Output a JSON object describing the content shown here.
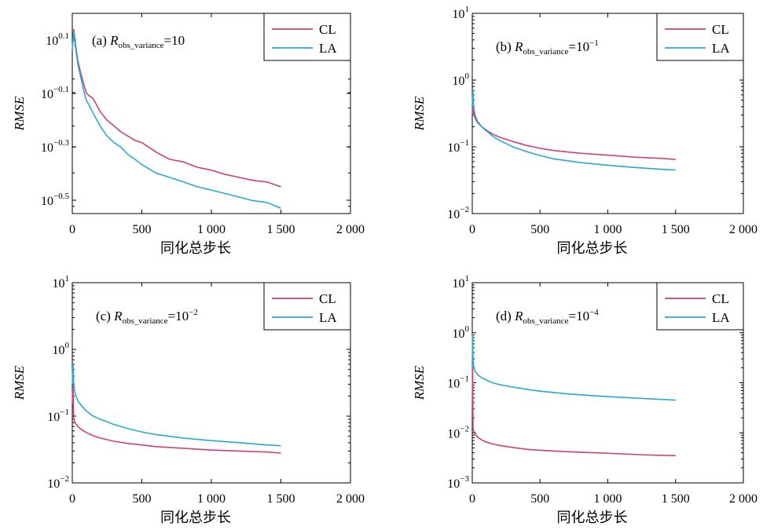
{
  "chart_data": [
    {
      "type": "line",
      "panel_label": "(a)",
      "title_var": "R",
      "title_sub": "obs_variance",
      "title_eq": "=10",
      "title_sup": "",
      "xlabel": "同化总步长",
      "ylabel": "RMSE",
      "xlim": [
        0,
        2000
      ],
      "x_ticks": [
        0,
        500,
        1000,
        1500,
        2000
      ],
      "x_tick_labels": [
        "0",
        "500",
        "1 000",
        "1 500",
        "2 000"
      ],
      "y_scale": "log",
      "ylim_log10": [
        -0.55,
        0.2
      ],
      "y_ticks_log10": [
        0.1,
        -0.1,
        -0.3,
        -0.5
      ],
      "y_tick_labels": [
        {
          "base": "10",
          "exp": "0.1"
        },
        {
          "base": "10",
          "exp": "−0.1"
        },
        {
          "base": "10",
          "exp": "−0.3"
        },
        {
          "base": "10",
          "exp": "−0.5"
        }
      ],
      "legend": "top-right",
      "series": [
        {
          "name": "CL",
          "color": "#c8417a",
          "x": [
            0,
            10,
            20,
            40,
            60,
            80,
            100,
            120,
            150,
            200,
            250,
            300,
            350,
            400,
            450,
            500,
            600,
            700,
            800,
            900,
            1000,
            1100,
            1200,
            1300,
            1400,
            1500
          ],
          "y": [
            1.15,
            1.38,
            1.25,
            1.05,
            0.95,
            0.87,
            0.8,
            0.78,
            0.76,
            0.68,
            0.63,
            0.6,
            0.57,
            0.55,
            0.53,
            0.52,
            0.48,
            0.45,
            0.44,
            0.42,
            0.41,
            0.395,
            0.385,
            0.375,
            0.37,
            0.355
          ]
        },
        {
          "name": "LA",
          "color": "#2ba7d4",
          "x": [
            0,
            10,
            20,
            40,
            60,
            80,
            100,
            120,
            150,
            200,
            250,
            300,
            350,
            400,
            450,
            500,
            600,
            700,
            800,
            900,
            1000,
            1100,
            1200,
            1300,
            1400,
            1500
          ],
          "y": [
            1.15,
            1.35,
            1.22,
            1.02,
            0.92,
            0.82,
            0.75,
            0.72,
            0.67,
            0.6,
            0.55,
            0.52,
            0.5,
            0.47,
            0.45,
            0.43,
            0.4,
            0.385,
            0.37,
            0.355,
            0.345,
            0.335,
            0.325,
            0.315,
            0.31,
            0.295
          ]
        }
      ]
    },
    {
      "type": "line",
      "panel_label": "(b)",
      "title_var": "R",
      "title_sub": "obs_variance",
      "title_eq": "=10",
      "title_sup": "−1",
      "xlabel": "同化总步长",
      "ylabel": "RMSE",
      "xlim": [
        0,
        2000
      ],
      "x_ticks": [
        0,
        500,
        1000,
        1500,
        2000
      ],
      "x_tick_labels": [
        "0",
        "500",
        "1 000",
        "1 500",
        "2 000"
      ],
      "y_scale": "log",
      "ylim_log10": [
        -2,
        1
      ],
      "y_ticks_log10": [
        1,
        0,
        -1,
        -2
      ],
      "y_tick_labels": [
        {
          "base": "10",
          "exp": "1"
        },
        {
          "base": "10",
          "exp": "0"
        },
        {
          "base": "10",
          "exp": "−1"
        },
        {
          "base": "10",
          "exp": "−2"
        }
      ],
      "legend": "top-right",
      "series": [
        {
          "name": "CL",
          "color": "#c8417a",
          "x": [
            0,
            5,
            10,
            20,
            40,
            70,
            100,
            150,
            200,
            300,
            400,
            500,
            600,
            800,
            1000,
            1200,
            1400,
            1500
          ],
          "y": [
            0.3,
            0.45,
            0.32,
            0.27,
            0.23,
            0.2,
            0.18,
            0.155,
            0.14,
            0.12,
            0.105,
            0.095,
            0.088,
            0.08,
            0.075,
            0.07,
            0.067,
            0.065
          ]
        },
        {
          "name": "LA",
          "color": "#2ba7d4",
          "x": [
            0,
            5,
            10,
            20,
            40,
            70,
            100,
            150,
            200,
            300,
            400,
            500,
            600,
            800,
            1000,
            1200,
            1400,
            1500
          ],
          "y": [
            0.4,
            0.7,
            0.4,
            0.3,
            0.24,
            0.2,
            0.175,
            0.145,
            0.125,
            0.1,
            0.085,
            0.074,
            0.066,
            0.058,
            0.053,
            0.049,
            0.046,
            0.045
          ]
        }
      ]
    },
    {
      "type": "line",
      "panel_label": "(c)",
      "title_var": "R",
      "title_sub": "obs_variance",
      "title_eq": "=10",
      "title_sup": "−2",
      "xlabel": "同化总步长",
      "ylabel": "RMSE",
      "xlim": [
        0,
        2000
      ],
      "x_ticks": [
        0,
        500,
        1000,
        1500,
        2000
      ],
      "x_tick_labels": [
        "0",
        "500",
        "1 000",
        "1 500",
        "2 000"
      ],
      "y_scale": "log",
      "ylim_log10": [
        -2,
        1
      ],
      "y_ticks_log10": [
        1,
        0,
        -1,
        -2
      ],
      "y_tick_labels": [
        {
          "base": "10",
          "exp": "1"
        },
        {
          "base": "10",
          "exp": "0"
        },
        {
          "base": "10",
          "exp": "−1"
        },
        {
          "base": "10",
          "exp": "−2"
        }
      ],
      "legend": "top-right",
      "series": [
        {
          "name": "CL",
          "color": "#c8417a",
          "x": [
            0,
            5,
            10,
            20,
            40,
            70,
            100,
            150,
            200,
            300,
            400,
            500,
            600,
            800,
            1000,
            1200,
            1400,
            1500
          ],
          "y": [
            0.15,
            0.28,
            0.09,
            0.08,
            0.07,
            0.062,
            0.057,
            0.051,
            0.047,
            0.042,
            0.039,
            0.037,
            0.035,
            0.033,
            0.031,
            0.03,
            0.029,
            0.028
          ]
        },
        {
          "name": "LA",
          "color": "#2ba7d4",
          "x": [
            0,
            5,
            10,
            20,
            40,
            70,
            100,
            150,
            200,
            300,
            400,
            500,
            600,
            800,
            1000,
            1200,
            1400,
            1500
          ],
          "y": [
            0.3,
            0.6,
            0.3,
            0.22,
            0.17,
            0.14,
            0.12,
            0.1,
            0.09,
            0.075,
            0.065,
            0.058,
            0.053,
            0.047,
            0.043,
            0.04,
            0.037,
            0.036
          ]
        }
      ]
    },
    {
      "type": "line",
      "panel_label": "(d)",
      "title_var": "R",
      "title_sub": "obs_variance",
      "title_eq": "=10",
      "title_sup": "−4",
      "xlabel": "同化总步长",
      "ylabel": "RMSE",
      "xlim": [
        0,
        2000
      ],
      "x_ticks": [
        0,
        500,
        1000,
        1500,
        2000
      ],
      "x_tick_labels": [
        "0",
        "500",
        "1 000",
        "1 500",
        "2 000"
      ],
      "y_scale": "log",
      "ylim_log10": [
        -3,
        1
      ],
      "y_ticks_log10": [
        1,
        0,
        -1,
        -2,
        -3
      ],
      "y_tick_labels": [
        {
          "base": "10",
          "exp": "1"
        },
        {
          "base": "10",
          "exp": "0"
        },
        {
          "base": "10",
          "exp": "−1"
        },
        {
          "base": "10",
          "exp": "−2"
        },
        {
          "base": "10",
          "exp": "−3"
        }
      ],
      "legend": "top-right",
      "series": [
        {
          "name": "CL",
          "color": "#c8417a",
          "x": [
            0,
            3,
            6,
            10,
            20,
            40,
            70,
            100,
            150,
            200,
            300,
            400,
            500,
            700,
            900,
            1100,
            1300,
            1500
          ],
          "y": [
            0.03,
            0.2,
            0.012,
            0.011,
            0.0095,
            0.0082,
            0.0072,
            0.0066,
            0.006,
            0.0056,
            0.0051,
            0.0047,
            0.0045,
            0.0042,
            0.004,
            0.0038,
            0.0036,
            0.0035
          ]
        },
        {
          "name": "LA",
          "color": "#2ba7d4",
          "x": [
            0,
            3,
            6,
            10,
            20,
            40,
            70,
            100,
            150,
            200,
            300,
            400,
            500,
            700,
            900,
            1100,
            1300,
            1500
          ],
          "y": [
            0.2,
            0.9,
            0.3,
            0.22,
            0.17,
            0.145,
            0.125,
            0.115,
            0.1,
            0.092,
            0.082,
            0.074,
            0.068,
            0.06,
            0.055,
            0.051,
            0.048,
            0.045
          ]
        }
      ]
    }
  ]
}
